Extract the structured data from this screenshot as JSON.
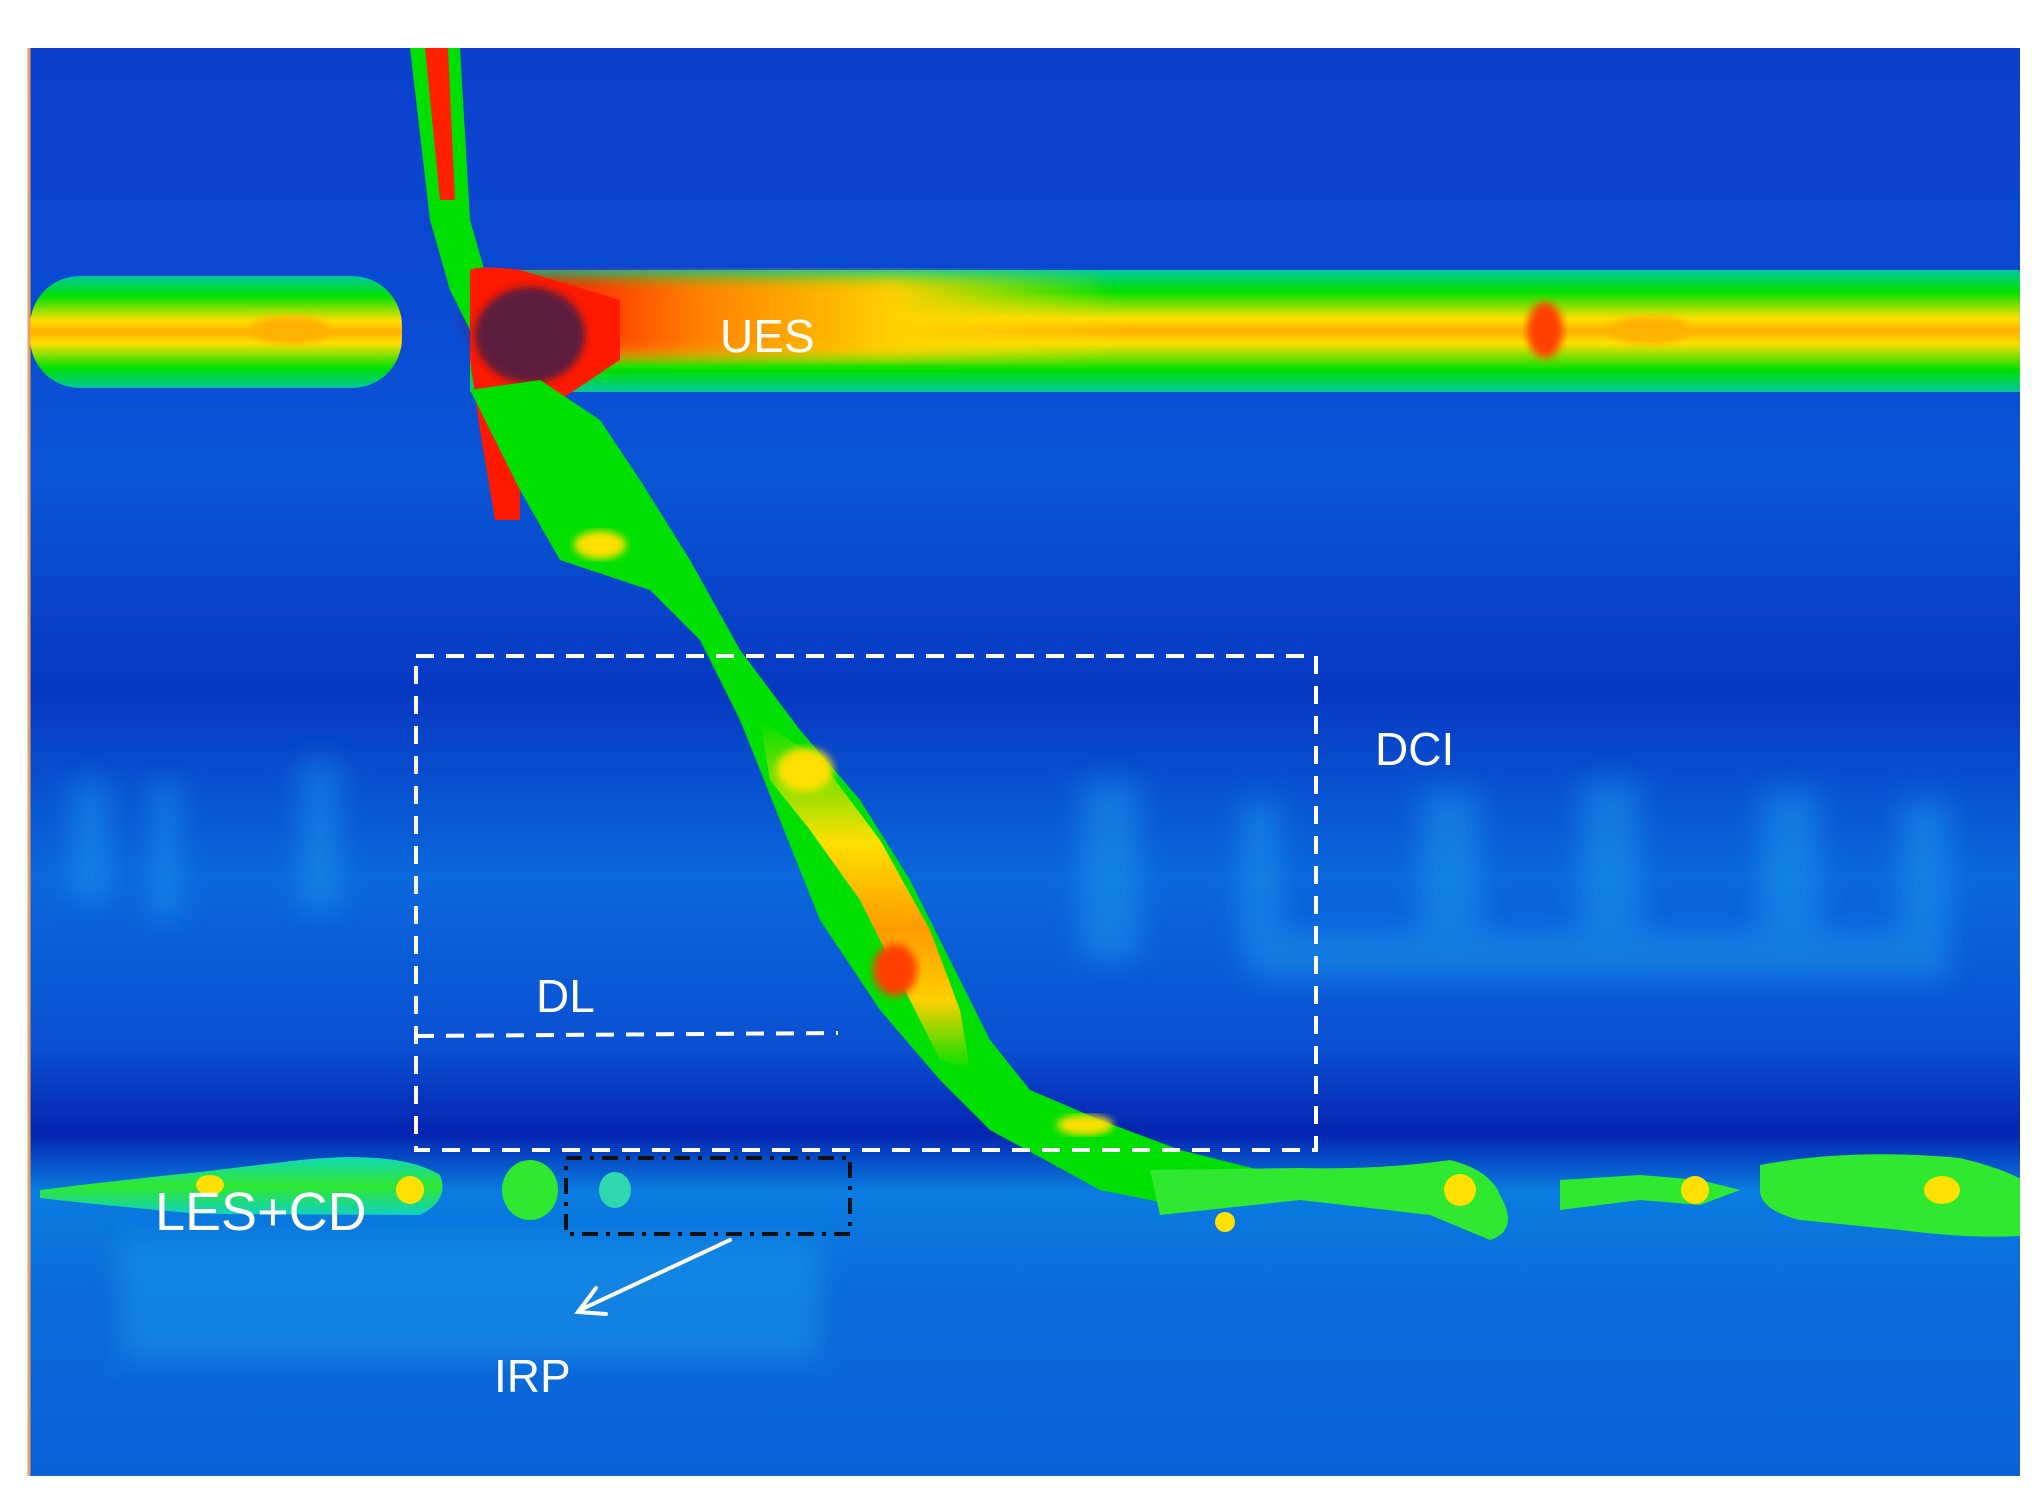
{
  "figure": {
    "labels": {
      "ues": "UES",
      "dci": "DCI",
      "dl": "DL",
      "les_cd": "LES+CD",
      "irp": "IRP"
    },
    "colors": {
      "background": "#0a5fd8",
      "deep_band": "#0630b8",
      "high_pressure": "#5c1a3c",
      "red": "#ff1a00",
      "yellow": "#ffe000",
      "green": "#00e000",
      "cyan": "#20d8e8",
      "annotation": "#ffffff"
    }
  }
}
